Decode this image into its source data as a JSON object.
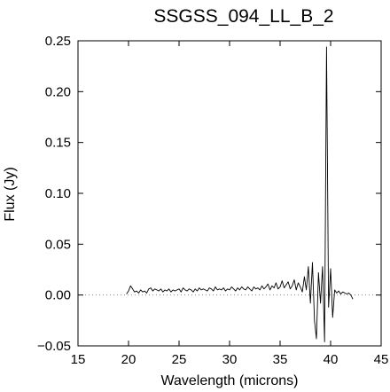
{
  "chart_data": {
    "type": "line",
    "title": "SSGSS_094_LL_B_2",
    "xlabel": "Wavelength (microns)",
    "ylabel": "Flux (Jy)",
    "xlim": [
      15,
      45
    ],
    "ylim": [
      -0.05,
      0.25
    ],
    "xticks": [
      15,
      20,
      25,
      30,
      35,
      40,
      45
    ],
    "yticks": [
      -0.05,
      0.0,
      0.05,
      0.1,
      0.15,
      0.2,
      0.25
    ],
    "xtick_labels": [
      "15",
      "20",
      "25",
      "30",
      "35",
      "40",
      "45"
    ],
    "ytick_labels": [
      "−0.05",
      "0.00",
      "0.05",
      "0.10",
      "0.15",
      "0.20",
      "0.25"
    ],
    "zero_line": {
      "y": 0,
      "style": "dotted"
    },
    "grid": false,
    "series": [
      {
        "color": "#000000",
        "x": [
          19.8,
          20.0,
          20.2,
          20.4,
          20.6,
          20.8,
          21.0,
          21.2,
          21.4,
          21.6,
          21.8,
          22.0,
          22.2,
          22.4,
          22.6,
          22.8,
          23.0,
          23.2,
          23.4,
          23.6,
          23.8,
          24.0,
          24.2,
          24.4,
          24.6,
          24.8,
          25.0,
          25.2,
          25.4,
          25.6,
          25.8,
          26.0,
          26.2,
          26.4,
          26.6,
          26.8,
          27.0,
          27.2,
          27.4,
          27.6,
          27.8,
          28.0,
          28.2,
          28.4,
          28.6,
          28.8,
          29.0,
          29.2,
          29.4,
          29.6,
          29.8,
          30.0,
          30.2,
          30.4,
          30.6,
          30.8,
          31.0,
          31.2,
          31.4,
          31.6,
          31.8,
          32.0,
          32.2,
          32.4,
          32.6,
          32.8,
          33.0,
          33.2,
          33.4,
          33.6,
          33.8,
          34.0,
          34.2,
          34.4,
          34.6,
          34.8,
          35.0,
          35.2,
          35.4,
          35.6,
          35.8,
          36.0,
          36.2,
          36.4,
          36.6,
          36.8,
          37.0,
          37.2,
          37.4,
          37.6,
          37.8,
          38.0,
          38.2,
          38.4,
          38.6,
          38.8,
          39.0,
          39.2,
          39.4,
          39.6,
          39.8,
          40.0,
          40.2,
          40.4,
          40.6,
          40.8,
          41.0,
          41.2,
          41.4,
          41.6,
          41.8,
          42.0,
          42.2
        ],
        "y": [
          0.001,
          0.004,
          0.009,
          0.006,
          0.003,
          0.004,
          0.002,
          0.005,
          0.003,
          0.004,
          0.002,
          0.006,
          0.007,
          0.004,
          0.006,
          0.005,
          0.004,
          0.006,
          0.003,
          0.005,
          0.004,
          0.006,
          0.003,
          0.005,
          0.004,
          0.005,
          0.006,
          0.003,
          0.007,
          0.005,
          0.004,
          0.006,
          0.005,
          0.003,
          0.006,
          0.004,
          0.007,
          0.005,
          0.006,
          0.005,
          0.004,
          0.007,
          0.006,
          0.004,
          0.008,
          0.005,
          0.006,
          0.005,
          0.007,
          0.004,
          0.006,
          0.005,
          0.008,
          0.006,
          0.004,
          0.007,
          0.005,
          0.008,
          0.006,
          0.005,
          0.008,
          0.006,
          0.004,
          0.008,
          0.006,
          0.007,
          0.005,
          0.009,
          0.006,
          0.008,
          0.011,
          0.005,
          0.009,
          0.007,
          0.012,
          0.006,
          0.008,
          0.014,
          0.007,
          0.01,
          0.013,
          0.006,
          0.009,
          0.015,
          0.005,
          0.012,
          0.008,
          0.003,
          0.018,
          0.005,
          0.028,
          -0.008,
          0.032,
          -0.025,
          -0.043,
          0.022,
          -0.008,
          0.028,
          -0.046,
          0.244,
          -0.012,
          0.026,
          -0.022,
          0.005,
          0.002,
          0.004,
          0.001,
          0.003,
          0.002,
          0.001,
          0.002,
          0.0,
          -0.004
        ]
      }
    ]
  }
}
